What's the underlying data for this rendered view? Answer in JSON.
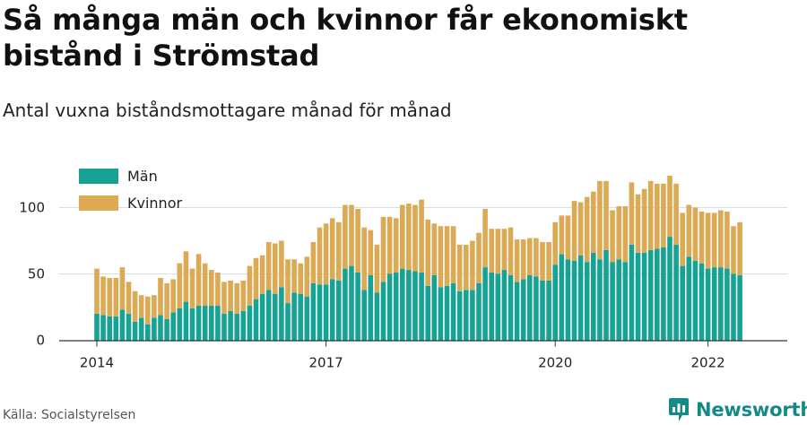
{
  "header": {
    "title": "Så många män och kvinnor får ekonomiskt bistånd i Strömstad",
    "subtitle": "Antal vuxna biståndsmottagare månad för månad"
  },
  "footer": {
    "source": "Källa: Socialstyrelsen",
    "brand": "Newsworthy"
  },
  "colors": {
    "men": "#16a394",
    "women": "#dcaa55",
    "grid": "#dddddd",
    "axis": "#333333",
    "brand": "#148a86"
  },
  "chart_data": {
    "type": "bar",
    "stacked": true,
    "start": "2014-01",
    "interval": "month",
    "x_ticks": [
      "2014",
      "2017",
      "2020",
      "2022"
    ],
    "y_ticks": [
      0,
      50,
      100
    ],
    "ylim": [
      0,
      130
    ],
    "legend_position": "top-left",
    "grid": true,
    "series": [
      {
        "name": "Män",
        "values": [
          20,
          19,
          18,
          18,
          23,
          20,
          14,
          17,
          12,
          17,
          19,
          16,
          21,
          24,
          29,
          24,
          26,
          26,
          26,
          26,
          20,
          22,
          20,
          22,
          26,
          31,
          35,
          38,
          35,
          40,
          28,
          36,
          35,
          33,
          43,
          42,
          42,
          46,
          45,
          54,
          56,
          51,
          38,
          49,
          36,
          44,
          50,
          51,
          54,
          53,
          52,
          51,
          41,
          49,
          40,
          41,
          43,
          37,
          38,
          38,
          43,
          55,
          51,
          50,
          53,
          49,
          44,
          46,
          49,
          48,
          45,
          45,
          57,
          65,
          61,
          60,
          64,
          59,
          66,
          61,
          68,
          59,
          61,
          59,
          72,
          66,
          66,
          68,
          69,
          70,
          78,
          72,
          56,
          63,
          60,
          58,
          54,
          55,
          55,
          54,
          50,
          49
        ]
      },
      {
        "name": "Kvinnor",
        "values": [
          34,
          29,
          29,
          29,
          32,
          24,
          23,
          17,
          21,
          17,
          28,
          27,
          25,
          34,
          38,
          30,
          39,
          32,
          27,
          25,
          24,
          23,
          23,
          23,
          30,
          31,
          29,
          36,
          38,
          35,
          33,
          25,
          23,
          30,
          31,
          43,
          46,
          46,
          44,
          48,
          46,
          48,
          47,
          34,
          36,
          49,
          43,
          41,
          48,
          50,
          50,
          55,
          50,
          39,
          46,
          45,
          43,
          35,
          34,
          37,
          38,
          44,
          33,
          34,
          31,
          36,
          32,
          30,
          28,
          29,
          29,
          29,
          32,
          29,
          33,
          45,
          40,
          49,
          46,
          59,
          52,
          39,
          40,
          42,
          47,
          44,
          48,
          52,
          49,
          48,
          46,
          46,
          40,
          39,
          40,
          39,
          42,
          41,
          43,
          43,
          36,
          40
        ]
      }
    ]
  }
}
